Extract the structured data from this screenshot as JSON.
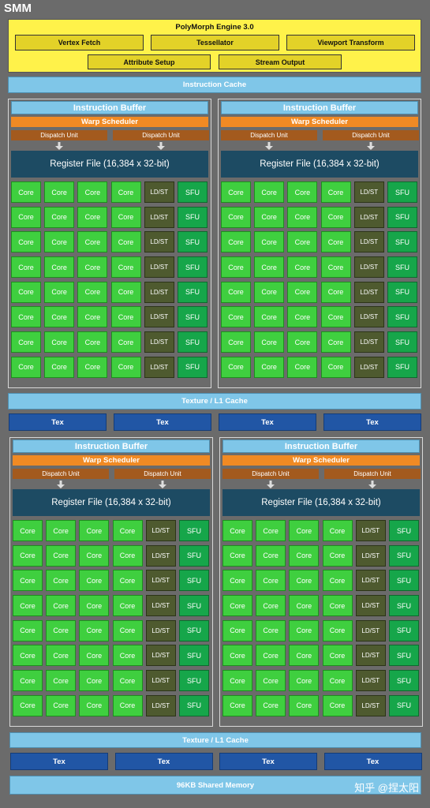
{
  "title": "SMM",
  "polymorph": {
    "title": "PolyMorph Engine 3.0",
    "row1": [
      "Vertex Fetch",
      "Tessellator",
      "Viewport Transform"
    ],
    "row2": [
      "Attribute Setup",
      "Stream Output"
    ]
  },
  "instruction_cache": "Instruction Cache",
  "sm_block": {
    "instruction_buffer": "Instruction Buffer",
    "warp_scheduler": "Warp Scheduler",
    "dispatch_unit": "Dispatch Unit",
    "register_file": "Register File (16,384 x 32-bit)",
    "core": "Core",
    "ldst": "LD/ST",
    "sfu": "SFU"
  },
  "texture_l1_cache": "Texture / L1 Cache",
  "tex_label": "Tex",
  "shared_memory": "96KB Shared Memory",
  "watermark": "知乎 @捏太阳",
  "colors": {
    "background": "#6b6b6b",
    "polymorph": "#fff24a",
    "cache": "#7fc6e8",
    "warp_scheduler": "#f08a24",
    "dispatch_unit": "#a35a1e",
    "register_file": "#1d4b63",
    "core": "#3fcf3f",
    "ldst": "#4e5a2f",
    "sfu": "#16a64a",
    "tex": "#2156a5"
  }
}
